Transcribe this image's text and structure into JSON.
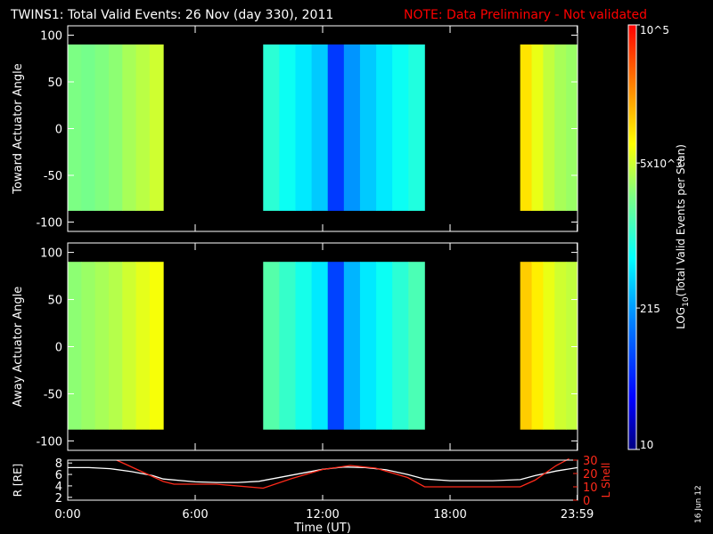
{
  "title": "TWINS1: Total Valid Events: 26 Nov (day 330), 2011",
  "note": "NOTE: Data Preliminary - Not validated",
  "colors": {
    "background": "#000000",
    "foreground": "#ffffff",
    "note": "#ff0000",
    "lshell": "#ff2a1a",
    "radius": "#ffffff"
  },
  "date_stamp": "16 Jun 12",
  "time_axis": {
    "label": "Time (UT)",
    "range_hours": [
      0,
      24
    ],
    "ticks": [
      {
        "hour": 0,
        "label": "0:00"
      },
      {
        "hour": 6,
        "label": "6:00"
      },
      {
        "hour": 12,
        "label": "12:00"
      },
      {
        "hour": 18,
        "label": "18:00"
      },
      {
        "hour": 23.983,
        "label": "23:59"
      }
    ]
  },
  "colorbar": {
    "title": "LOG10(Total Valid Events per Scan)",
    "range": [
      10,
      100000
    ],
    "scale": "log",
    "colormap": [
      "#000080",
      "#0000ff",
      "#00ffff",
      "#ffff00",
      "#ff0000"
    ],
    "ticks": [
      {
        "value": 100000,
        "label": "10^5"
      },
      {
        "value": 5000,
        "label": "5x10^3"
      },
      {
        "value": 215,
        "label": "215"
      },
      {
        "value": 10,
        "label": "10"
      }
    ]
  },
  "chart_data": [
    {
      "type": "heatmap",
      "ylabel": "Toward Actuator Angle",
      "ylim": [
        -110,
        110
      ],
      "yticks": [
        100,
        50,
        0,
        -50,
        -100
      ],
      "angle_coverage": [
        -88,
        90
      ],
      "data_intervals": [
        {
          "start_hour": 0.0,
          "end_hour": 4.5,
          "log_counts": [
            3.38,
            3.35,
            3.4,
            3.45,
            3.55,
            3.62,
            3.7
          ]
        },
        {
          "start_hour": 9.2,
          "end_hour": 16.8,
          "log_counts": [
            3.0,
            2.85,
            2.7,
            2.55,
            1.8,
            2.3,
            2.55,
            2.7,
            2.85,
            2.95
          ]
        },
        {
          "start_hour": 21.3,
          "end_hour": 24.0,
          "log_counts": [
            4.0,
            3.8,
            3.65,
            3.55,
            3.5
          ]
        }
      ]
    },
    {
      "type": "heatmap",
      "ylabel": "Away Actuator Angle",
      "ylim": [
        -110,
        110
      ],
      "yticks": [
        100,
        50,
        0,
        -50,
        -100
      ],
      "angle_coverage": [
        -88,
        90
      ],
      "data_intervals": [
        {
          "start_hour": 0.0,
          "end_hour": 4.5,
          "log_counts": [
            3.45,
            3.5,
            3.55,
            3.6,
            3.7,
            3.78,
            3.85
          ]
        },
        {
          "start_hour": 9.2,
          "end_hour": 16.8,
          "log_counts": [
            3.2,
            3.05,
            2.9,
            2.7,
            1.85,
            2.45,
            2.7,
            2.85,
            3.0,
            3.15
          ]
        },
        {
          "start_hour": 21.3,
          "end_hour": 24.0,
          "log_counts": [
            4.1,
            3.95,
            3.8,
            3.7,
            3.65
          ]
        }
      ]
    },
    {
      "type": "line",
      "ylabel_left": "R [RE]",
      "ylabel_right": "L Shell",
      "ylim_left": [
        1.5,
        8.5
      ],
      "yticks_left": [
        8,
        6,
        4,
        2
      ],
      "ylim_right": [
        0,
        30
      ],
      "yticks_right": [
        30,
        20,
        10,
        0
      ],
      "series": [
        {
          "axis": "left",
          "x": [
            0,
            1,
            2,
            3,
            4,
            4.5,
            6,
            7,
            8,
            9,
            10,
            11,
            12,
            13,
            14,
            15,
            16,
            16.8,
            18,
            20,
            21.3,
            22,
            23,
            24
          ],
          "values": [
            7.2,
            7.2,
            7.0,
            6.5,
            5.8,
            5.2,
            4.7,
            4.6,
            4.6,
            4.8,
            5.5,
            6.2,
            6.9,
            7.3,
            7.2,
            6.8,
            6.0,
            5.2,
            4.9,
            4.9,
            5.1,
            5.8,
            6.6,
            7.2
          ]
        },
        {
          "axis": "right",
          "x": [
            2.3,
            4.5,
            5.0,
            7.0,
            9.2,
            10.5,
            12.0,
            13.3,
            14.5,
            16.0,
            16.8,
            18.0,
            21.3,
            22.0,
            23.0,
            23.6
          ],
          "values": [
            30,
            14,
            12,
            12,
            9,
            16,
            23,
            26,
            24,
            17,
            10,
            10,
            10,
            15,
            26,
            31
          ]
        }
      ]
    }
  ]
}
